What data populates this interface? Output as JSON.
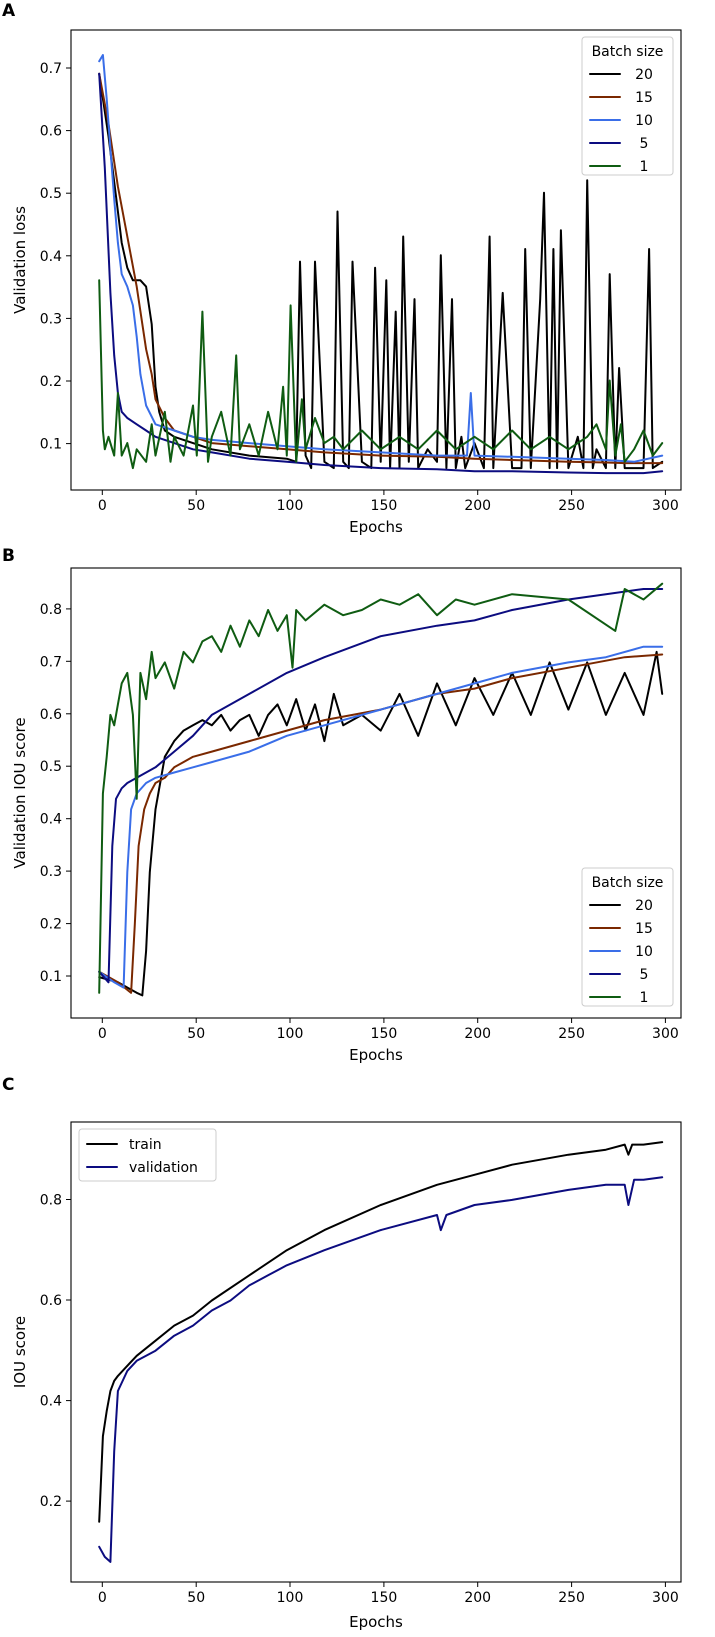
{
  "chart_data": [
    {
      "panel": "A",
      "type": "line",
      "xlabel": "Epochs",
      "ylabel": "Validation loss",
      "xlim": [
        -15,
        310
      ],
      "ylim": [
        0.035,
        0.77
      ],
      "xticks": [
        0,
        50,
        100,
        150,
        200,
        250,
        300
      ],
      "yticks": [
        0.1,
        0.2,
        0.3,
        0.4,
        0.5,
        0.6,
        0.7
      ],
      "ytick_labels": [
        "0.1",
        "0.2",
        "0.3",
        "0.4",
        "0.5",
        "0.6",
        "0.7"
      ],
      "legend": {
        "title": "Batch size",
        "placement": "top-right"
      },
      "series": [
        {
          "name": "20",
          "color": "#000000",
          "x": [
            0,
            5,
            10,
            12,
            15,
            18,
            20,
            22,
            25,
            28,
            30,
            32,
            35,
            40,
            50,
            60,
            80,
            100,
            105,
            107,
            110,
            113,
            115,
            120,
            125,
            127,
            130,
            133,
            135,
            140,
            145,
            147,
            150,
            153,
            155,
            158,
            160,
            162,
            165,
            168,
            170,
            175,
            180,
            182,
            185,
            188,
            190,
            193,
            195,
            200,
            205,
            208,
            210,
            215,
            220,
            225,
            227,
            230,
            235,
            237,
            240,
            242,
            244,
            246,
            250,
            255,
            258,
            260,
            263,
            265,
            270,
            272,
            275,
            277,
            280,
            285,
            290,
            293,
            295,
            300
          ],
          "y": [
            0.7,
            0.6,
            0.48,
            0.43,
            0.39,
            0.37,
            0.37,
            0.37,
            0.36,
            0.3,
            0.2,
            0.16,
            0.13,
            0.12,
            0.11,
            0.1,
            0.09,
            0.085,
            0.08,
            0.4,
            0.09,
            0.07,
            0.4,
            0.08,
            0.07,
            0.48,
            0.08,
            0.07,
            0.4,
            0.08,
            0.07,
            0.39,
            0.08,
            0.37,
            0.07,
            0.32,
            0.07,
            0.44,
            0.08,
            0.34,
            0.07,
            0.1,
            0.08,
            0.41,
            0.07,
            0.34,
            0.07,
            0.12,
            0.07,
            0.11,
            0.07,
            0.44,
            0.07,
            0.35,
            0.07,
            0.07,
            0.42,
            0.07,
            0.34,
            0.51,
            0.07,
            0.42,
            0.07,
            0.45,
            0.07,
            0.12,
            0.07,
            0.53,
            0.07,
            0.1,
            0.07,
            0.38,
            0.07,
            0.23,
            0.07,
            0.07,
            0.07,
            0.42,
            0.07,
            0.08
          ]
        },
        {
          "name": "15",
          "color": "#7a2800",
          "x": [
            0,
            5,
            10,
            15,
            20,
            25,
            28,
            30,
            35,
            40,
            50,
            60,
            80,
            100,
            120,
            150,
            180,
            200,
            220,
            250,
            270,
            280,
            300
          ],
          "y": [
            0.7,
            0.62,
            0.52,
            0.44,
            0.36,
            0.26,
            0.22,
            0.18,
            0.15,
            0.13,
            0.12,
            0.11,
            0.105,
            0.1,
            0.095,
            0.09,
            0.088,
            0.085,
            0.083,
            0.08,
            0.079,
            0.078,
            0.078
          ]
        },
        {
          "name": "10",
          "color": "#3a6ee8",
          "x": [
            0,
            2,
            4,
            6,
            8,
            10,
            12,
            15,
            18,
            20,
            22,
            25,
            30,
            40,
            50,
            60,
            80,
            100,
            120,
            150,
            180,
            196,
            198,
            200,
            220,
            250,
            270,
            285,
            300
          ],
          "y": [
            0.72,
            0.73,
            0.66,
            0.58,
            0.5,
            0.43,
            0.38,
            0.36,
            0.33,
            0.28,
            0.22,
            0.17,
            0.14,
            0.13,
            0.12,
            0.115,
            0.11,
            0.105,
            0.1,
            0.095,
            0.09,
            0.09,
            0.19,
            0.09,
            0.088,
            0.085,
            0.083,
            0.08,
            0.09
          ]
        },
        {
          "name": "5",
          "color": "#0c0c80",
          "x": [
            0,
            3,
            6,
            8,
            10,
            12,
            15,
            20,
            25,
            30,
            40,
            50,
            60,
            80,
            100,
            120,
            150,
            180,
            200,
            220,
            250,
            270,
            290,
            300
          ],
          "y": [
            0.7,
            0.55,
            0.35,
            0.25,
            0.19,
            0.16,
            0.15,
            0.14,
            0.13,
            0.12,
            0.11,
            0.1,
            0.095,
            0.085,
            0.08,
            0.075,
            0.07,
            0.068,
            0.065,
            0.065,
            0.063,
            0.062,
            0.062,
            0.065
          ]
        },
        {
          "name": "1",
          "color": "#0f5c12",
          "x": [
            0,
            2,
            3,
            5,
            8,
            10,
            12,
            15,
            18,
            20,
            25,
            28,
            30,
            35,
            38,
            40,
            45,
            50,
            52,
            55,
            58,
            60,
            65,
            70,
            73,
            75,
            80,
            85,
            90,
            95,
            98,
            100,
            102,
            105,
            108,
            110,
            115,
            120,
            125,
            130,
            140,
            150,
            160,
            170,
            180,
            190,
            200,
            210,
            220,
            230,
            240,
            250,
            260,
            265,
            270,
            272,
            275,
            278,
            280,
            285,
            290,
            295,
            300
          ],
          "y": [
            0.37,
            0.13,
            0.1,
            0.12,
            0.09,
            0.19,
            0.09,
            0.11,
            0.07,
            0.1,
            0.08,
            0.14,
            0.09,
            0.16,
            0.08,
            0.12,
            0.09,
            0.17,
            0.09,
            0.32,
            0.08,
            0.12,
            0.16,
            0.09,
            0.25,
            0.1,
            0.14,
            0.09,
            0.16,
            0.1,
            0.2,
            0.09,
            0.33,
            0.08,
            0.18,
            0.1,
            0.15,
            0.11,
            0.12,
            0.1,
            0.13,
            0.1,
            0.12,
            0.1,
            0.13,
            0.1,
            0.12,
            0.1,
            0.13,
            0.1,
            0.12,
            0.1,
            0.12,
            0.14,
            0.1,
            0.21,
            0.09,
            0.14,
            0.08,
            0.1,
            0.13,
            0.09,
            0.11
          ]
        }
      ]
    },
    {
      "panel": "B",
      "type": "line",
      "xlabel": "Epochs",
      "ylabel": "Validation IOU score",
      "xlim": [
        -15,
        310
      ],
      "ylim": [
        0.022,
        0.88
      ],
      "xticks": [
        0,
        50,
        100,
        150,
        200,
        250,
        300
      ],
      "yticks": [
        0.1,
        0.2,
        0.3,
        0.4,
        0.5,
        0.6,
        0.7,
        0.8
      ],
      "ytick_labels": [
        "0.1",
        "0.2",
        "0.3",
        "0.4",
        "0.5",
        "0.6",
        "0.7",
        "0.8"
      ],
      "legend": {
        "title": "Batch size",
        "placement": "bottom-right"
      },
      "series": [
        {
          "name": "20",
          "color": "#000000",
          "x": [
            0,
            10,
            20,
            23,
            25,
            27,
            30,
            33,
            35,
            40,
            45,
            50,
            55,
            60,
            65,
            70,
            75,
            80,
            85,
            90,
            95,
            100,
            105,
            110,
            115,
            120,
            125,
            130,
            140,
            150,
            160,
            170,
            180,
            190,
            200,
            210,
            220,
            230,
            240,
            250,
            260,
            270,
            280,
            290,
            297,
            300
          ],
          "y": [
            0.1,
            0.09,
            0.07,
            0.065,
            0.15,
            0.3,
            0.42,
            0.48,
            0.52,
            0.55,
            0.57,
            0.58,
            0.59,
            0.58,
            0.6,
            0.57,
            0.59,
            0.6,
            0.56,
            0.6,
            0.62,
            0.58,
            0.63,
            0.57,
            0.62,
            0.55,
            0.64,
            0.58,
            0.6,
            0.57,
            0.64,
            0.56,
            0.66,
            0.58,
            0.67,
            0.6,
            0.68,
            0.6,
            0.7,
            0.61,
            0.7,
            0.6,
            0.68,
            0.6,
            0.72,
            0.64
          ]
        },
        {
          "name": "15",
          "color": "#7a2800",
          "x": [
            0,
            10,
            17,
            19,
            21,
            24,
            27,
            30,
            35,
            40,
            50,
            60,
            80,
            100,
            120,
            150,
            180,
            200,
            220,
            250,
            280,
            300
          ],
          "y": [
            0.11,
            0.09,
            0.07,
            0.2,
            0.35,
            0.42,
            0.45,
            0.47,
            0.48,
            0.5,
            0.52,
            0.53,
            0.55,
            0.57,
            0.59,
            0.61,
            0.64,
            0.65,
            0.67,
            0.69,
            0.71,
            0.715
          ]
        },
        {
          "name": "10",
          "color": "#3a6ee8",
          "x": [
            0,
            8,
            13,
            15,
            17,
            20,
            25,
            30,
            40,
            50,
            60,
            80,
            100,
            120,
            150,
            180,
            200,
            220,
            250,
            270,
            290,
            300
          ],
          "y": [
            0.11,
            0.09,
            0.08,
            0.3,
            0.42,
            0.45,
            0.47,
            0.48,
            0.49,
            0.5,
            0.51,
            0.53,
            0.56,
            0.58,
            0.61,
            0.64,
            0.66,
            0.68,
            0.7,
            0.71,
            0.73,
            0.73
          ]
        },
        {
          "name": "5",
          "color": "#0c0c80",
          "x": [
            0,
            5,
            7,
            9,
            12,
            15,
            20,
            30,
            40,
            50,
            60,
            80,
            100,
            120,
            150,
            180,
            200,
            220,
            250,
            270,
            290,
            300
          ],
          "y": [
            0.11,
            0.09,
            0.35,
            0.44,
            0.46,
            0.47,
            0.48,
            0.5,
            0.53,
            0.56,
            0.6,
            0.64,
            0.68,
            0.71,
            0.75,
            0.77,
            0.78,
            0.8,
            0.82,
            0.83,
            0.84,
            0.84
          ]
        },
        {
          "name": "1",
          "color": "#0f5c12",
          "x": [
            0,
            2,
            4,
            6,
            8,
            10,
            12,
            15,
            18,
            20,
            22,
            25,
            28,
            30,
            35,
            40,
            45,
            50,
            55,
            60,
            65,
            70,
            75,
            80,
            85,
            90,
            95,
            100,
            103,
            105,
            110,
            120,
            130,
            140,
            150,
            160,
            170,
            180,
            190,
            200,
            220,
            250,
            275,
            280,
            290,
            300
          ],
          "y": [
            0.07,
            0.45,
            0.52,
            0.6,
            0.58,
            0.62,
            0.66,
            0.68,
            0.6,
            0.44,
            0.68,
            0.63,
            0.72,
            0.67,
            0.7,
            0.65,
            0.72,
            0.7,
            0.74,
            0.75,
            0.72,
            0.77,
            0.73,
            0.78,
            0.75,
            0.8,
            0.76,
            0.79,
            0.69,
            0.8,
            0.78,
            0.81,
            0.79,
            0.8,
            0.82,
            0.81,
            0.83,
            0.79,
            0.82,
            0.81,
            0.83,
            0.82,
            0.76,
            0.84,
            0.82,
            0.85
          ]
        }
      ]
    },
    {
      "panel": "C",
      "type": "line",
      "xlabel": "Epochs",
      "ylabel": "IOU score",
      "xlim": [
        -15,
        310
      ],
      "ylim": [
        0.04,
        0.955
      ],
      "xticks": [
        0,
        50,
        100,
        150,
        200,
        250,
        300
      ],
      "yticks": [
        0.2,
        0.4,
        0.6,
        0.8
      ],
      "ytick_labels": [
        "0.2",
        "0.4",
        "0.6",
        "0.8"
      ],
      "legend": {
        "title": "",
        "placement": "top-left"
      },
      "series": [
        {
          "name": "train",
          "color": "#000000",
          "x": [
            0,
            2,
            4,
            6,
            8,
            10,
            15,
            20,
            30,
            40,
            50,
            60,
            80,
            100,
            120,
            150,
            180,
            200,
            220,
            250,
            270,
            280,
            282,
            284,
            290,
            300
          ],
          "y": [
            0.16,
            0.33,
            0.38,
            0.42,
            0.44,
            0.45,
            0.47,
            0.49,
            0.52,
            0.55,
            0.57,
            0.6,
            0.65,
            0.7,
            0.74,
            0.79,
            0.83,
            0.85,
            0.87,
            0.89,
            0.9,
            0.91,
            0.89,
            0.91,
            0.91,
            0.915
          ]
        },
        {
          "name": "validation",
          "color": "#0c0c80",
          "x": [
            0,
            3,
            6,
            8,
            10,
            15,
            20,
            25,
            30,
            40,
            50,
            60,
            70,
            80,
            90,
            100,
            120,
            150,
            180,
            182,
            185,
            200,
            220,
            250,
            270,
            280,
            282,
            285,
            290,
            300
          ],
          "y": [
            0.11,
            0.09,
            0.08,
            0.3,
            0.42,
            0.46,
            0.48,
            0.49,
            0.5,
            0.53,
            0.55,
            0.58,
            0.6,
            0.63,
            0.65,
            0.67,
            0.7,
            0.74,
            0.77,
            0.74,
            0.77,
            0.79,
            0.8,
            0.82,
            0.83,
            0.83,
            0.79,
            0.84,
            0.84,
            0.845
          ]
        }
      ]
    }
  ],
  "panels": [
    {
      "letter": "A",
      "ylabel": "Validation loss",
      "xlabel": "Epochs",
      "legend_title": "Batch size",
      "xtick_labels": [
        "0",
        "50",
        "100",
        "150",
        "200",
        "250",
        "300"
      ]
    },
    {
      "letter": "B",
      "ylabel": "Validation IOU score",
      "xlabel": "Epochs",
      "legend_title": "Batch size",
      "xtick_labels": [
        "0",
        "50",
        "100",
        "150",
        "200",
        "250",
        "300"
      ]
    },
    {
      "letter": "C",
      "ylabel": "IOU score",
      "xlabel": "Epochs",
      "legend_title": "",
      "xtick_labels": [
        "0",
        "50",
        "100",
        "150",
        "200",
        "250",
        "300"
      ]
    }
  ]
}
